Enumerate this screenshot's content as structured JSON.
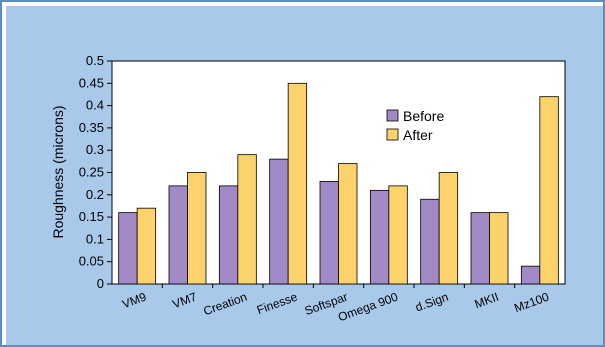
{
  "chart_data": {
    "type": "bar",
    "title": "",
    "xlabel": "",
    "ylabel": "Roughness (microns)",
    "ylim": [
      0,
      0.5
    ],
    "yticks": [
      "0",
      "0.05",
      "0.1",
      "0.15",
      "0.2",
      "0.25",
      "0.3",
      "0.35",
      "0.4",
      "0.45",
      "0.5"
    ],
    "grid": false,
    "legend_position": "upper-middle-right",
    "categories": [
      "VM9",
      "VM7",
      "Creation",
      "Finesse",
      "Softspar",
      "Omega 900",
      "d.Sign",
      "MKII",
      "Mz100"
    ],
    "series": [
      {
        "name": "Before",
        "color": "#a089c4",
        "values": [
          0.16,
          0.22,
          0.22,
          0.28,
          0.23,
          0.21,
          0.19,
          0.16,
          0.04
        ]
      },
      {
        "name": "After",
        "color": "#fcd36a",
        "values": [
          0.17,
          0.25,
          0.29,
          0.45,
          0.27,
          0.22,
          0.25,
          0.16,
          0.42
        ]
      }
    ]
  },
  "colors": {
    "panel_background": "#a9c9ea",
    "plot_background": "#ffffff",
    "frame_border": "#5b8fc4"
  }
}
